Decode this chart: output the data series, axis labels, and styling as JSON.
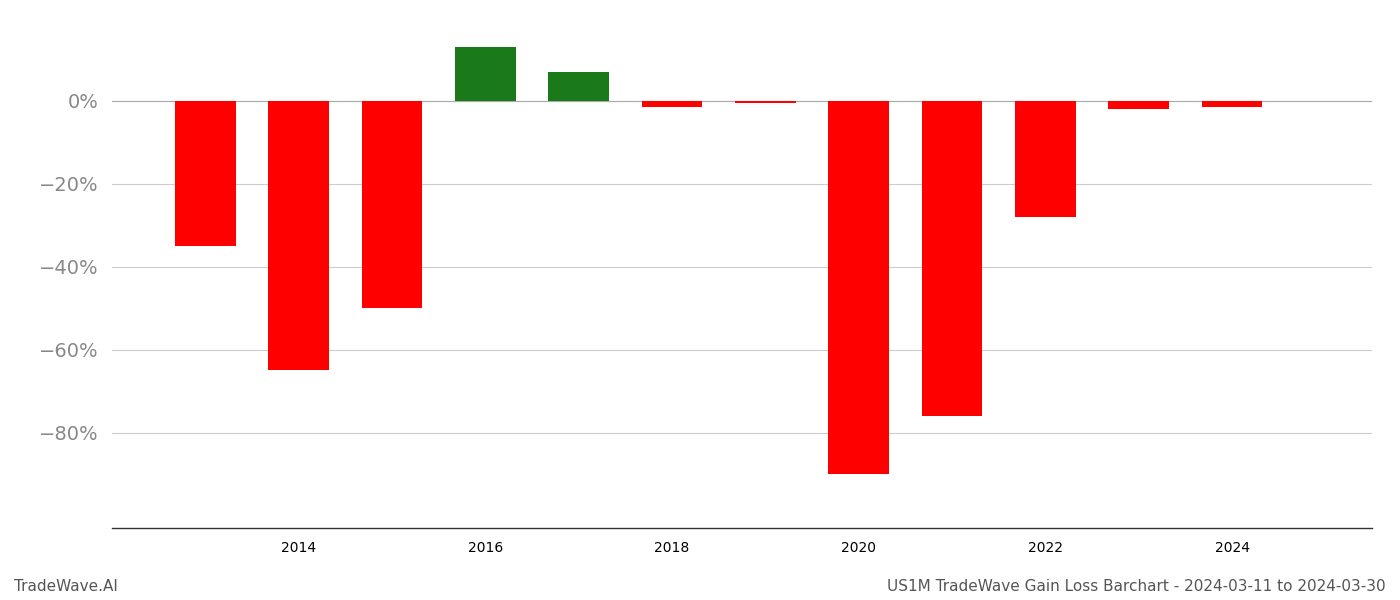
{
  "years": [
    2013,
    2014,
    2015,
    2016,
    2017,
    2018,
    2019,
    2020,
    2021,
    2022,
    2023,
    2024
  ],
  "values": [
    -35.0,
    -65.0,
    -50.0,
    13.0,
    7.0,
    -1.5,
    -0.5,
    -90.0,
    -76.0,
    -28.0,
    -2.0,
    -1.5
  ],
  "bar_colors": [
    "#ff0000",
    "#ff0000",
    "#ff0000",
    "#1a7a1a",
    "#1a7a1a",
    "#ff0000",
    "#ff0000",
    "#ff0000",
    "#ff0000",
    "#ff0000",
    "#ff0000",
    "#ff0000"
  ],
  "ytick_values": [
    0,
    -20,
    -40,
    -60,
    -80
  ],
  "ytick_labels": [
    "0%",
    "−20%",
    "−40%",
    "−60%",
    "−80%"
  ],
  "xtick_values": [
    2014,
    2016,
    2018,
    2020,
    2022,
    2024
  ],
  "xlim": [
    2012.0,
    2025.5
  ],
  "ylim": [
    -103,
    20
  ],
  "bar_width": 0.65,
  "background_color": "#ffffff",
  "grid_color": "#cccccc",
  "tick_color": "#888888",
  "footer_left": "TradeWave.AI",
  "footer_right": "US1M TradeWave Gain Loss Barchart - 2024-03-11 to 2024-03-30",
  "footer_fontsize": 11,
  "tick_fontsize": 14
}
